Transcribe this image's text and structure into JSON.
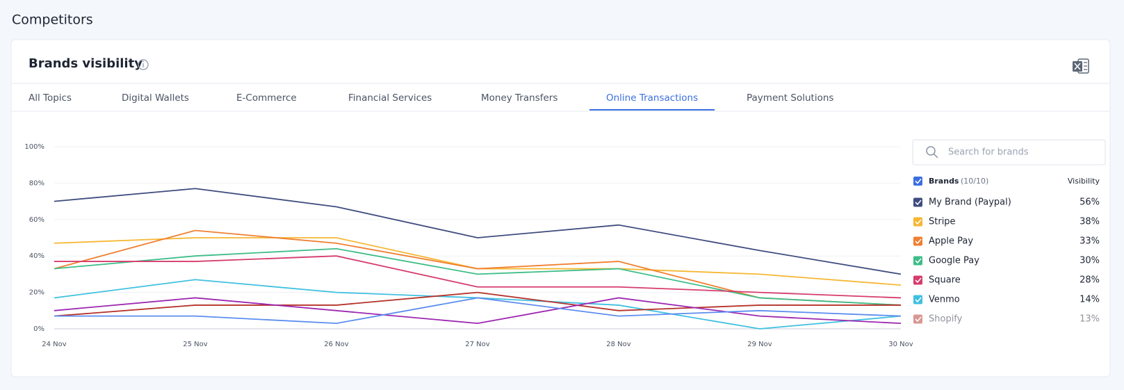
{
  "page": {
    "heading": "Competitors"
  },
  "card": {
    "title": "Brands visibility",
    "tabs": [
      "All Topics",
      "Digital Wallets",
      "E-Commerce",
      "Financial Services",
      "Money Transfers",
      "Online Transactions",
      "Payment Solutions"
    ],
    "active_tab": 5
  },
  "sidebar": {
    "search_placeholder": "Search for brands",
    "brands_label": "Brands",
    "brands_count": "(10/10)",
    "visibility_header": "Visibility"
  },
  "chart_data": {
    "type": "line",
    "categories": [
      "24 Nov",
      "25 Nov",
      "26 Nov",
      "27 Nov",
      "28 Nov",
      "29 Nov",
      "30 Nov"
    ],
    "ylim": [
      0,
      100
    ],
    "yticks": [
      {
        "value": 0,
        "label": "0%"
      },
      {
        "value": 20,
        "label": "20%"
      },
      {
        "value": 40,
        "label": "40%"
      },
      {
        "value": 60,
        "label": "60%"
      },
      {
        "value": 80,
        "label": "80%"
      },
      {
        "value": 100,
        "label": "100%"
      }
    ],
    "grid": true,
    "series": [
      {
        "name": "My Brand (Paypal)",
        "color": "#3f4c7e",
        "values": [
          70,
          77,
          67,
          50,
          57,
          43,
          30
        ],
        "visibility": "56%"
      },
      {
        "name": "Stripe",
        "color": "#f6b733",
        "values": [
          47,
          50,
          50,
          33,
          33,
          30,
          24
        ],
        "visibility": "38%"
      },
      {
        "name": "Apple Pay",
        "color": "#f07f2f",
        "values": [
          33,
          54,
          47,
          33,
          37,
          17,
          13
        ],
        "visibility": "33%"
      },
      {
        "name": "Google Pay",
        "color": "#3dbd87",
        "values": [
          33,
          40,
          44,
          30,
          33,
          17,
          13
        ],
        "visibility": "30%"
      },
      {
        "name": "Square",
        "color": "#d63c6c",
        "values": [
          37,
          37,
          40,
          23,
          23,
          20,
          17
        ],
        "visibility": "28%"
      },
      {
        "name": "Venmo",
        "color": "#3fc0e0",
        "values": [
          17,
          27,
          20,
          17,
          13,
          0,
          7
        ],
        "visibility": "14%"
      },
      {
        "name": "Shopify",
        "color": "#b5322a",
        "values": [
          7,
          13,
          13,
          20,
          10,
          13,
          13
        ],
        "visibility": "13%"
      },
      {
        "color": "#9c27b0",
        "values": [
          10,
          17,
          10,
          3,
          17,
          7,
          3
        ]
      },
      {
        "color": "#5b8def",
        "values": [
          7,
          7,
          3,
          17,
          7,
          10,
          7
        ]
      }
    ]
  }
}
